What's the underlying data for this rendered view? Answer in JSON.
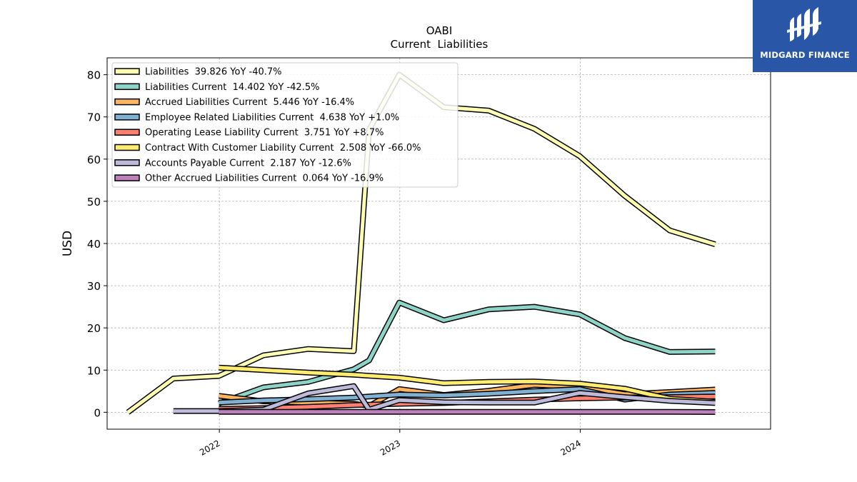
{
  "chart_data": {
    "type": "line",
    "title": "OABI",
    "subtitle": "Current  Liabilities",
    "xlabel": "",
    "ylabel": "USD",
    "x_ticks": [
      "2022",
      "2023",
      "2024"
    ],
    "y_ticks": [
      0,
      10,
      20,
      30,
      40,
      50,
      60,
      70,
      80
    ],
    "xlim": [
      "2021-05-19",
      "2025-01-20"
    ],
    "ylim": [
      -4,
      84
    ],
    "grid": true,
    "legend_position": "top-left",
    "series": [
      {
        "name": "Liabilities  39.826 YoY -40.7%",
        "color": "#ffffb3",
        "points": [
          [
            "2021-06-30",
            0
          ],
          [
            "2021-09-30",
            8
          ],
          [
            "2021-12-31",
            8.6
          ],
          [
            "2022-03-31",
            13.5
          ],
          [
            "2022-06-30",
            15
          ],
          [
            "2022-09-30",
            14.5
          ],
          [
            "2022-10-31",
            67
          ],
          [
            "2022-12-31",
            80
          ],
          [
            "2023-03-31",
            72.3
          ],
          [
            "2023-06-30",
            71.5
          ],
          [
            "2023-09-30",
            67.2
          ],
          [
            "2023-12-31",
            60.7
          ],
          [
            "2024-03-31",
            51.3
          ],
          [
            "2024-06-30",
            43.1
          ],
          [
            "2024-09-30",
            39.8
          ]
        ]
      },
      {
        "name": "Liabilities Current  14.402 YoY -42.5%",
        "color": "#8dd3c7",
        "points": [
          [
            "2021-12-31",
            2.1
          ],
          [
            "2022-03-31",
            5.9
          ],
          [
            "2022-06-30",
            7.2
          ],
          [
            "2022-09-30",
            10.2
          ],
          [
            "2022-10-31",
            12.3
          ],
          [
            "2022-12-31",
            26
          ],
          [
            "2023-03-31",
            21.8
          ],
          [
            "2023-06-30",
            24.4
          ],
          [
            "2023-09-30",
            25
          ],
          [
            "2023-12-31",
            23.2
          ],
          [
            "2024-03-31",
            17.6
          ],
          [
            "2024-06-30",
            14.3
          ],
          [
            "2024-09-30",
            14.4
          ]
        ]
      },
      {
        "name": "Accrued Liabilities Current  5.446 YoY -16.4%",
        "color": "#fdb462",
        "points": [
          [
            "2021-12-31",
            3.9
          ],
          [
            "2022-03-31",
            2.6
          ],
          [
            "2022-06-30",
            2.3
          ],
          [
            "2022-09-30",
            2.0
          ],
          [
            "2022-10-31",
            1.5
          ],
          [
            "2022-12-31",
            5.5
          ],
          [
            "2023-03-31",
            4.1
          ],
          [
            "2023-06-30",
            5.1
          ],
          [
            "2023-09-30",
            6.5
          ],
          [
            "2023-12-31",
            6.0
          ],
          [
            "2024-03-31",
            4.3
          ],
          [
            "2024-06-30",
            4.8
          ],
          [
            "2024-09-30",
            5.4
          ]
        ]
      },
      {
        "name": "Employee Related Liabilities Current  4.638 YoY +1.0%",
        "color": "#80b1d3",
        "points": [
          [
            "2021-12-31",
            2.3
          ],
          [
            "2022-03-31",
            2.8
          ],
          [
            "2022-06-30",
            3.1
          ],
          [
            "2022-09-30",
            3.5
          ],
          [
            "2022-12-31",
            4.2
          ],
          [
            "2023-03-31",
            4.0
          ],
          [
            "2023-06-30",
            4.4
          ],
          [
            "2023-09-30",
            5.0
          ],
          [
            "2023-12-31",
            5.5
          ],
          [
            "2024-03-31",
            3.0
          ],
          [
            "2024-06-30",
            4.2
          ],
          [
            "2024-09-30",
            4.6
          ]
        ]
      },
      {
        "name": "Operating Lease Liability Current  3.751 YoY +8.7%",
        "color": "#fb8072",
        "points": [
          [
            "2021-12-31",
            0.8
          ],
          [
            "2022-03-31",
            1.0
          ],
          [
            "2022-06-30",
            1.3
          ],
          [
            "2022-09-30",
            1.7
          ],
          [
            "2022-12-31",
            2.0
          ],
          [
            "2023-03-31",
            2.2
          ],
          [
            "2023-06-30",
            2.6
          ],
          [
            "2023-09-30",
            3.0
          ],
          [
            "2023-12-31",
            3.3
          ],
          [
            "2024-03-31",
            3.5
          ],
          [
            "2024-06-30",
            3.6
          ],
          [
            "2024-09-30",
            3.75
          ]
        ]
      },
      {
        "name": "Contract With Customer Liability Current  2.508 YoY -66.0%",
        "color": "#ffed6f",
        "points": [
          [
            "2021-12-31",
            10.6
          ],
          [
            "2022-03-31",
            10.0
          ],
          [
            "2022-06-30",
            9.4
          ],
          [
            "2022-09-30",
            8.9
          ],
          [
            "2022-12-31",
            8.2
          ],
          [
            "2023-03-31",
            6.9
          ],
          [
            "2023-06-30",
            7.2
          ],
          [
            "2023-09-30",
            7.3
          ],
          [
            "2023-12-31",
            6.8
          ],
          [
            "2024-03-31",
            5.6
          ],
          [
            "2024-06-30",
            3.2
          ],
          [
            "2024-09-30",
            2.5
          ]
        ]
      },
      {
        "name": "Accounts Payable Current  2.187 YoY -12.6%",
        "color": "#bebada",
        "points": [
          [
            "2021-09-30",
            0.3
          ],
          [
            "2021-12-31",
            0.3
          ],
          [
            "2022-03-31",
            0.6
          ],
          [
            "2022-06-30",
            4.5
          ],
          [
            "2022-09-30",
            6.2
          ],
          [
            "2022-10-31",
            0.6
          ],
          [
            "2022-12-31",
            2.9
          ],
          [
            "2023-03-31",
            2.4
          ],
          [
            "2023-06-30",
            2.3
          ],
          [
            "2023-09-30",
            2.3
          ],
          [
            "2023-12-31",
            4.6
          ],
          [
            "2024-03-31",
            3.6
          ],
          [
            "2024-06-30",
            2.7
          ],
          [
            "2024-09-30",
            2.2
          ]
        ]
      },
      {
        "name": "Other Accrued Liabilities Current  0.064 YoY -16.9%",
        "color": "#bc80bd",
        "points": [
          [
            "2021-12-31",
            0.1
          ],
          [
            "2022-03-31",
            0.1
          ],
          [
            "2022-06-30",
            0.1
          ],
          [
            "2022-09-30",
            0.1
          ],
          [
            "2022-12-31",
            0.1
          ],
          [
            "2023-03-31",
            0.1
          ],
          [
            "2023-06-30",
            0.1
          ],
          [
            "2023-09-30",
            0.1
          ],
          [
            "2023-12-31",
            0.1
          ],
          [
            "2024-03-31",
            0.1
          ],
          [
            "2024-06-30",
            0.1
          ],
          [
            "2024-09-30",
            0.06
          ]
        ]
      }
    ]
  },
  "logo": {
    "text": "MIDGARD FINANCE",
    "bg_color": "#2a56a8"
  }
}
